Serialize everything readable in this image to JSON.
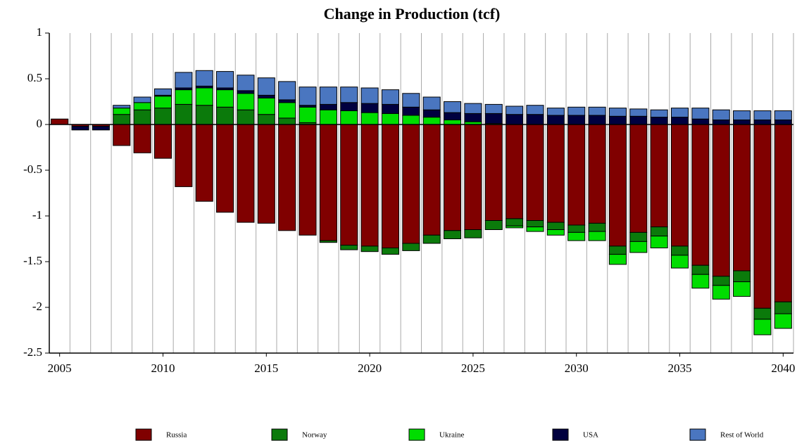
{
  "chart_data": {
    "type": "stacked_bar",
    "title": "Change in Production (tcf)",
    "x": [
      2005,
      2006,
      2007,
      2008,
      2009,
      2010,
      2011,
      2012,
      2013,
      2014,
      2015,
      2016,
      2017,
      2018,
      2019,
      2020,
      2021,
      2022,
      2023,
      2024,
      2025,
      2026,
      2027,
      2028,
      2029,
      2030,
      2031,
      2032,
      2033,
      2034,
      2035,
      2036,
      2037,
      2038,
      2039,
      2040
    ],
    "xlim": [
      2004.5,
      2040.5
    ],
    "xticks": [
      2005,
      2010,
      2015,
      2020,
      2025,
      2030,
      2035,
      2040
    ],
    "ylim": [
      -2.5,
      1
    ],
    "yticks": [
      1,
      0.5,
      0,
      -0.5,
      -1,
      -1.5,
      -2,
      -2.5
    ],
    "legend": "bottom",
    "series": [
      {
        "name": "Russia",
        "color": "#800000",
        "values": [
          0.06,
          -0.02,
          -0.02,
          -0.23,
          -0.31,
          -0.37,
          -0.68,
          -0.84,
          -0.96,
          -1.07,
          -1.08,
          -1.16,
          -1.21,
          -1.27,
          -1.32,
          -1.33,
          -1.35,
          -1.3,
          -1.21,
          -1.16,
          -1.15,
          -1.05,
          -1.03,
          -1.05,
          -1.07,
          -1.1,
          -1.08,
          -1.33,
          -1.18,
          -1.12,
          -1.33,
          -1.54,
          -1.66,
          -1.6,
          -2.01,
          -1.94
        ]
      },
      {
        "name": "Norway",
        "color": "#0b7a0b",
        "values": [
          0,
          0,
          0,
          0.11,
          0.16,
          0.18,
          0.22,
          0.21,
          0.19,
          0.16,
          0.11,
          0.07,
          0.02,
          -0.02,
          -0.05,
          -0.06,
          -0.07,
          -0.08,
          -0.09,
          -0.09,
          -0.09,
          -0.1,
          -0.08,
          -0.07,
          -0.08,
          -0.08,
          -0.09,
          -0.09,
          -0.1,
          -0.1,
          -0.1,
          -0.1,
          -0.1,
          -0.12,
          -0.12,
          -0.13
        ]
      },
      {
        "name": "Ukraine",
        "color": "#00dd00",
        "values": [
          0,
          0,
          0,
          0.07,
          0.08,
          0.13,
          0.16,
          0.19,
          0.19,
          0.18,
          0.18,
          0.17,
          0.17,
          0.16,
          0.15,
          0.13,
          0.12,
          0.1,
          0.08,
          0.05,
          0.03,
          0.01,
          -0.02,
          -0.05,
          -0.06,
          -0.09,
          -0.1,
          -0.11,
          -0.12,
          -0.13,
          -0.14,
          -0.15,
          -0.15,
          -0.16,
          -0.17,
          -0.16
        ]
      },
      {
        "name": "USA",
        "color": "#00003f",
        "values": [
          0,
          -0.04,
          -0.04,
          0,
          0,
          0.01,
          0.02,
          0.02,
          0.02,
          0.03,
          0.03,
          0.03,
          0.02,
          0.06,
          0.09,
          0.1,
          0.1,
          0.09,
          0.08,
          0.08,
          0.09,
          0.11,
          0.11,
          0.11,
          0.1,
          0.1,
          0.1,
          0.09,
          0.09,
          0.08,
          0.08,
          0.06,
          0.05,
          0.05,
          0.05,
          0.05
        ]
      },
      {
        "name": "Rest of World",
        "color": "#4a76c0",
        "values": [
          0,
          0,
          0,
          0.03,
          0.06,
          0.07,
          0.17,
          0.17,
          0.18,
          0.17,
          0.19,
          0.2,
          0.2,
          0.19,
          0.17,
          0.17,
          0.16,
          0.15,
          0.14,
          0.12,
          0.11,
          0.1,
          0.09,
          0.1,
          0.08,
          0.09,
          0.09,
          0.09,
          0.08,
          0.08,
          0.1,
          0.12,
          0.11,
          0.1,
          0.1,
          0.1
        ]
      }
    ]
  }
}
